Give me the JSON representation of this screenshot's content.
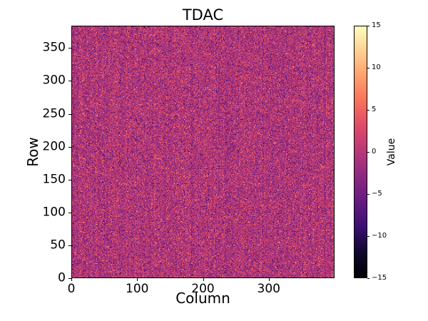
{
  "figure": {
    "background": "#ffffff",
    "text_color": "#000000"
  },
  "chart_data": {
    "type": "heatmap",
    "title": "TDAC",
    "xlabel": "Column",
    "ylabel": "Row",
    "n_cols": 400,
    "n_rows": 384,
    "x_range": [
      0,
      400
    ],
    "y_range": [
      0,
      384
    ],
    "x_ticks": [
      0,
      100,
      200,
      300
    ],
    "x_tick_labels": [
      "0",
      "100",
      "200",
      "300"
    ],
    "y_ticks": [
      0,
      50,
      100,
      150,
      200,
      250,
      300,
      350
    ],
    "y_tick_labels": [
      "0",
      "50",
      "100",
      "150",
      "200",
      "250",
      "300",
      "350"
    ],
    "value_range": [
      -15,
      15
    ],
    "grid": false,
    "legend": null,
    "values_summary": {
      "description": "Per-pixel TDAC trim values; spatially random noise centered near 0 with occasional bright (up to +15) and dark (down to -15) outliers and faint vertical column banding.",
      "distribution": "normal",
      "mean": -0.5,
      "std": 3.4,
      "outlier_fraction": 0.015,
      "column_banding_std": 0.5
    },
    "colormap": {
      "name": "magma",
      "stops": [
        {
          "pos": 0.0,
          "color": "#000004"
        },
        {
          "pos": 0.1,
          "color": "#10072e"
        },
        {
          "pos": 0.2,
          "color": "#3b0f70"
        },
        {
          "pos": 0.3,
          "color": "#641a80"
        },
        {
          "pos": 0.4,
          "color": "#8c2981"
        },
        {
          "pos": 0.5,
          "color": "#b73779"
        },
        {
          "pos": 0.6,
          "color": "#de4968"
        },
        {
          "pos": 0.7,
          "color": "#f7705c"
        },
        {
          "pos": 0.8,
          "color": "#fe9f6d"
        },
        {
          "pos": 0.9,
          "color": "#fecf92"
        },
        {
          "pos": 1.0,
          "color": "#fcfdbf"
        }
      ]
    }
  },
  "colorbar": {
    "label": "Value",
    "min": -15,
    "max": 15,
    "ticks": [
      15,
      10,
      5,
      0,
      -5,
      -10,
      -15
    ],
    "tick_labels": [
      "15",
      "10",
      "5",
      "0",
      "−5",
      "−10",
      "−15"
    ]
  }
}
